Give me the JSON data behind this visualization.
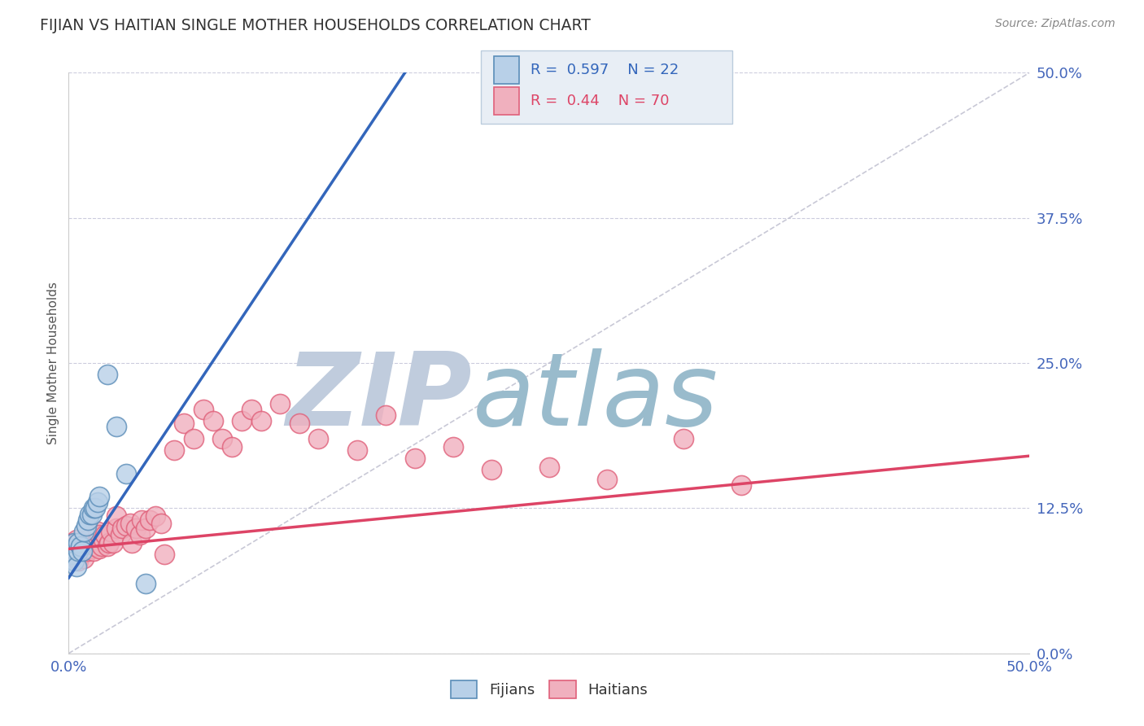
{
  "title": "FIJIAN VS HAITIAN SINGLE MOTHER HOUSEHOLDS CORRELATION CHART",
  "source": "Source: ZipAtlas.com",
  "ylabel": "Single Mother Households",
  "xlim": [
    0,
    0.5
  ],
  "ylim": [
    0,
    0.5
  ],
  "yticks": [
    0.0,
    0.125,
    0.25,
    0.375,
    0.5
  ],
  "ytick_labels": [
    "0.0%",
    "12.5%",
    "25.0%",
    "37.5%",
    "50.0%"
  ],
  "xtick_labels_shown": [
    "0.0%",
    "50.0%"
  ],
  "xticks_shown": [
    0.0,
    0.5
  ],
  "fijian_color": "#5B8DB8",
  "fijian_fill": "#B8D0E8",
  "haitian_color": "#E0607A",
  "haitian_fill": "#F0B0BE",
  "fijian_R": 0.597,
  "fijian_N": 22,
  "haitian_R": 0.44,
  "haitian_N": 70,
  "fijian_scatter_x": [
    0.001,
    0.002,
    0.003,
    0.003,
    0.004,
    0.005,
    0.005,
    0.006,
    0.007,
    0.008,
    0.009,
    0.01,
    0.011,
    0.012,
    0.013,
    0.014,
    0.015,
    0.016,
    0.02,
    0.025,
    0.03,
    0.04
  ],
  "fijian_scatter_y": [
    0.085,
    0.09,
    0.08,
    0.095,
    0.075,
    0.088,
    0.095,
    0.092,
    0.088,
    0.105,
    0.11,
    0.115,
    0.12,
    0.12,
    0.125,
    0.125,
    0.13,
    0.135,
    0.24,
    0.195,
    0.155,
    0.06
  ],
  "haitian_scatter_x": [
    0.001,
    0.002,
    0.002,
    0.003,
    0.003,
    0.004,
    0.004,
    0.005,
    0.005,
    0.006,
    0.006,
    0.007,
    0.007,
    0.008,
    0.008,
    0.009,
    0.01,
    0.01,
    0.011,
    0.012,
    0.013,
    0.014,
    0.015,
    0.015,
    0.016,
    0.016,
    0.017,
    0.018,
    0.019,
    0.02,
    0.021,
    0.022,
    0.023,
    0.025,
    0.025,
    0.027,
    0.028,
    0.03,
    0.032,
    0.033,
    0.035,
    0.037,
    0.038,
    0.04,
    0.042,
    0.045,
    0.048,
    0.05,
    0.055,
    0.06,
    0.065,
    0.07,
    0.075,
    0.08,
    0.085,
    0.09,
    0.095,
    0.1,
    0.11,
    0.12,
    0.13,
    0.15,
    0.165,
    0.18,
    0.2,
    0.22,
    0.25,
    0.28,
    0.32,
    0.35
  ],
  "haitian_scatter_y": [
    0.09,
    0.085,
    0.095,
    0.085,
    0.092,
    0.082,
    0.098,
    0.08,
    0.095,
    0.085,
    0.092,
    0.088,
    0.095,
    0.082,
    0.09,
    0.092,
    0.088,
    0.098,
    0.09,
    0.095,
    0.088,
    0.092,
    0.098,
    0.105,
    0.09,
    0.102,
    0.092,
    0.098,
    0.102,
    0.092,
    0.095,
    0.105,
    0.095,
    0.108,
    0.118,
    0.102,
    0.108,
    0.11,
    0.112,
    0.095,
    0.108,
    0.102,
    0.115,
    0.108,
    0.115,
    0.118,
    0.112,
    0.085,
    0.175,
    0.198,
    0.185,
    0.21,
    0.2,
    0.185,
    0.178,
    0.2,
    0.21,
    0.2,
    0.215,
    0.198,
    0.185,
    0.175,
    0.205,
    0.168,
    0.178,
    0.158,
    0.16,
    0.15,
    0.185,
    0.145
  ],
  "fijian_line_x": [
    0.0,
    0.175
  ],
  "fijian_line_y": [
    0.065,
    0.5
  ],
  "haitian_line_x": [
    0.0,
    0.5
  ],
  "haitian_line_y": [
    0.09,
    0.17
  ],
  "diagonal_line_x": [
    0.0,
    0.5
  ],
  "diagonal_line_y": [
    0.0,
    0.5
  ],
  "background_color": "#FFFFFF",
  "grid_color": "#CCCCDD",
  "watermark_text1": "ZIP",
  "watermark_text2": "atlas",
  "watermark_color1": "#C0CCDD",
  "watermark_color2": "#99BBCC",
  "title_color": "#333333",
  "axis_label_color": "#555555",
  "tick_label_color": "#4466BB",
  "legend_box_color": "#E8EEF5",
  "legend_border_color": "#BBCCDD"
}
